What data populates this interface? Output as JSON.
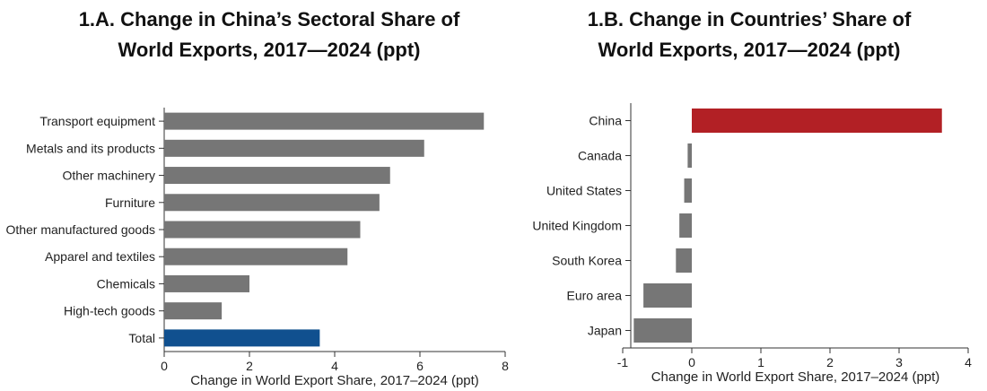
{
  "chart_data": [
    {
      "type": "bar",
      "orientation": "horizontal",
      "title_line1": "1.A. Change in China’s Sectoral Share of",
      "title_line2": "World Exports, 2017—2024 (ppt)",
      "xlabel": "Change in World Export Share, 2017–2024 (ppt)",
      "ylabel": "",
      "xlim": [
        0,
        8
      ],
      "xticks": [
        "0",
        "2",
        "4",
        "6",
        "8"
      ],
      "categories": [
        "Transport equipment",
        "Metals and its products",
        "Other machinery",
        "Furniture",
        "Other manufactured goods",
        "Apparel and textiles",
        "Chemicals",
        "High-tech goods",
        "Total"
      ],
      "values": [
        7.5,
        6.1,
        5.3,
        5.05,
        4.6,
        4.3,
        2.0,
        1.35,
        3.65
      ],
      "colors": {
        "default": "#767676",
        "Total": "#10508f"
      },
      "grid": false
    },
    {
      "type": "bar",
      "orientation": "horizontal",
      "title_line1": "1.B. Change in Countries’ Share of",
      "title_line2": "World Exports, 2017—2024 (ppt)",
      "xlabel": "Change in World Export Share, 2017–2024 (ppt)",
      "ylabel": "",
      "xlim": [
        -1,
        4
      ],
      "xticks": [
        "-1",
        "0",
        "1",
        "2",
        "3",
        "4"
      ],
      "categories": [
        "China",
        "Canada",
        "United States",
        "United Kingdom",
        "South Korea",
        "Euro area",
        "Japan"
      ],
      "values": [
        3.62,
        -0.06,
        -0.11,
        -0.18,
        -0.23,
        -0.7,
        -0.84
      ],
      "colors": {
        "default": "#767676",
        "China": "#b22025"
      },
      "grid": false
    }
  ]
}
